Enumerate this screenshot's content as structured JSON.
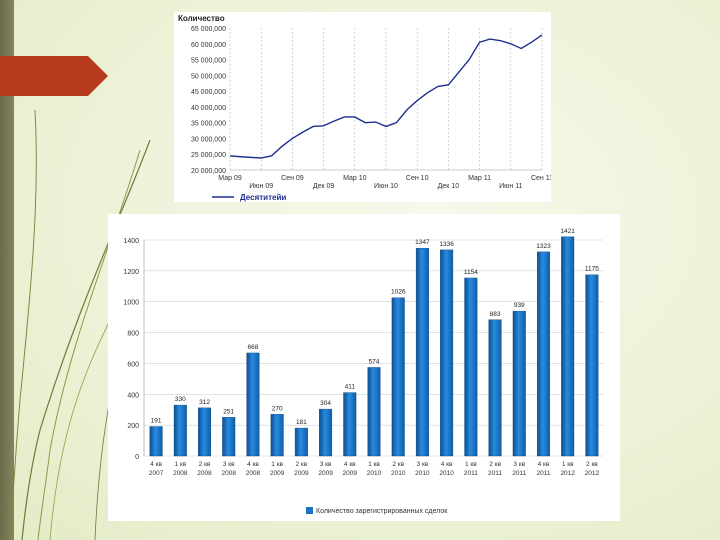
{
  "colors": {
    "accent_arrow": "#b83a1e",
    "line_color": "#1f2f8f",
    "bar_color": "#1b73c2",
    "grid_dashed": "#b8b8b8"
  },
  "chart_data": [
    {
      "type": "line",
      "title": "Количество",
      "y_tick_labels": [
        "65 000,000",
        "60 000,000",
        "55 000,000",
        "50 000,000",
        "45 000,000",
        "40 000,000",
        "35 000,000",
        "30 000,000",
        "25 000,000",
        "20 000,000"
      ],
      "x_tick_labels_row1": [
        "Мар 09",
        "Сен 09",
        "Мар 10",
        "Сен 10",
        "Мар 11",
        "Сен 11"
      ],
      "x_tick_labels_row2": [
        "Июн 09",
        "Дек 09",
        "Июн 10",
        "Дек 10",
        "Июн 11"
      ],
      "ylim": [
        20000000,
        65000000
      ],
      "legend": {
        "label": "Десятитейи",
        "position": "bottom-left"
      },
      "grid": "vertical-dashed",
      "series": [
        {
          "x": [
            "2009-03",
            "2009-04",
            "2009-05",
            "2009-06",
            "2009-07",
            "2009-08",
            "2009-09",
            "2009-10",
            "2009-11",
            "2009-12",
            "2010-01",
            "2010-02",
            "2010-03",
            "2010-04",
            "2010-05",
            "2010-06",
            "2010-07",
            "2010-08",
            "2010-09",
            "2010-10",
            "2010-11",
            "2010-12",
            "2011-01",
            "2011-02",
            "2011-03",
            "2011-04",
            "2011-05",
            "2011-06",
            "2011-07",
            "2011-08",
            "2011-09"
          ],
          "values": [
            24500000,
            24200000,
            24000000,
            23800000,
            24500000,
            27500000,
            30000000,
            32000000,
            33800000,
            34000000,
            35500000,
            36800000,
            36800000,
            35000000,
            35200000,
            33800000,
            35000000,
            39000000,
            42000000,
            44500000,
            46500000,
            47000000,
            51000000,
            55000000,
            60500000,
            61500000,
            61000000,
            60000000,
            58500000,
            60500000,
            62800000
          ]
        }
      ]
    },
    {
      "type": "bar",
      "categories": [
        "4 кв 2007",
        "1 кв 2008",
        "2 кв 2008",
        "3 кв 2008",
        "4 кв 2008",
        "1 кв 2009",
        "2 кв 2009",
        "3 кв 2009",
        "4 кв 2009",
        "1 кв 2010",
        "2 кв 2010",
        "3 кв 2010",
        "4 кв 2010",
        "1 кв 2011",
        "2 кв 2011",
        "3 кв 2011",
        "4 кв 2011",
        "1 кв 2012",
        "2 кв 2012"
      ],
      "category_lines": [
        [
          "4 кв",
          "2007"
        ],
        [
          "1 кв",
          "2008"
        ],
        [
          "2 кв",
          "2008"
        ],
        [
          "3 кв",
          "2008"
        ],
        [
          "4 кв",
          "2008"
        ],
        [
          "1 кв",
          "2009"
        ],
        [
          "2 кв",
          "2009"
        ],
        [
          "3 кв",
          "2009"
        ],
        [
          "4 кв",
          "2009"
        ],
        [
          "1 кв",
          "2010"
        ],
        [
          "2 кв",
          "2010"
        ],
        [
          "3 кв",
          "2010"
        ],
        [
          "4 кв",
          "2010"
        ],
        [
          "1 кв",
          "2011"
        ],
        [
          "2 кв",
          "2011"
        ],
        [
          "3 кв",
          "2011"
        ],
        [
          "4 кв",
          "2011"
        ],
        [
          "1 кв",
          "2012"
        ],
        [
          "2 кв",
          "2012"
        ]
      ],
      "values": [
        191,
        330,
        312,
        251,
        668,
        270,
        181,
        304,
        411,
        574,
        1026,
        1347,
        1336,
        1154,
        883,
        939,
        1323,
        1421,
        1175
      ],
      "data_labels": [
        "191",
        "330",
        "312",
        "251",
        "668",
        "270",
        "181",
        "304",
        "411",
        "574",
        "1026",
        "1347",
        "1336",
        "1154",
        "883",
        "939",
        "1323",
        "1421",
        "1175"
      ],
      "y_tick_labels": [
        "0",
        "200",
        "400",
        "600",
        "800",
        "1000",
        "1200",
        "1400"
      ],
      "ylim": [
        0,
        1400
      ],
      "legend": {
        "label": "Количество зарегистрированных сделок",
        "position": "bottom"
      },
      "grid": "horizontal"
    }
  ]
}
